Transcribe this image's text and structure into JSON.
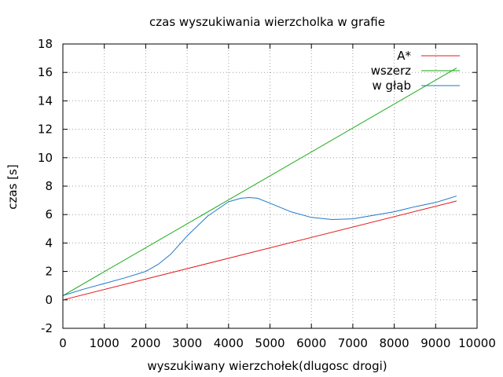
{
  "chart_data": {
    "type": "line",
    "title": "czas wyszukiwania wierzcholka w grafie",
    "xlabel": "wyszukiwany wierzchołek(dlugosc drogi)",
    "ylabel": "czas [s]",
    "xlim": [
      0,
      10000
    ],
    "ylim": [
      -2,
      18
    ],
    "xticks": [
      0,
      1000,
      2000,
      3000,
      4000,
      5000,
      6000,
      7000,
      8000,
      9000,
      10000
    ],
    "yticks": [
      -2,
      0,
      2,
      4,
      6,
      8,
      10,
      12,
      14,
      16,
      18
    ],
    "grid": true,
    "legend_position": "top-right",
    "series": [
      {
        "name": "A*",
        "color": "#e41a1c",
        "x": [
          0,
          9500
        ],
        "y": [
          0.0,
          6.95
        ]
      },
      {
        "name": "wszerz",
        "color": "#1aaa1a",
        "x": [
          0,
          9500
        ],
        "y": [
          0.3,
          16.3
        ]
      },
      {
        "name": "w głąb",
        "color": "#1f78c8",
        "x": [
          0,
          500,
          1000,
          1500,
          2000,
          2300,
          2600,
          3000,
          3500,
          4000,
          4300,
          4500,
          4700,
          5000,
          5500,
          6000,
          6500,
          7000,
          7500,
          8000,
          8500,
          9000,
          9500
        ],
        "y": [
          0.3,
          0.75,
          1.15,
          1.55,
          2.0,
          2.5,
          3.2,
          4.5,
          5.9,
          6.9,
          7.15,
          7.2,
          7.15,
          6.8,
          6.2,
          5.8,
          5.65,
          5.7,
          5.95,
          6.2,
          6.55,
          6.85,
          7.3
        ]
      }
    ]
  }
}
